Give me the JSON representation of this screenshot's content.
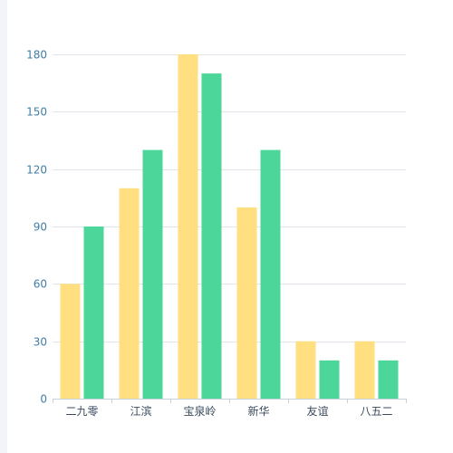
{
  "chart_data": {
    "type": "bar",
    "categories": [
      "二九零",
      "江滨",
      "宝泉岭",
      "新华",
      "友谊",
      "八五二"
    ],
    "series": [
      {
        "values": [
          60,
          110,
          180,
          100,
          30,
          30
        ],
        "color": "#ffdf80"
      },
      {
        "values": [
          90,
          130,
          170,
          130,
          20,
          20
        ],
        "color": "#4cd699"
      }
    ],
    "yticks": [
      0,
      30,
      60,
      90,
      120,
      150,
      180
    ],
    "ylim": [
      0,
      180
    ],
    "grid": true,
    "legend": "none"
  }
}
